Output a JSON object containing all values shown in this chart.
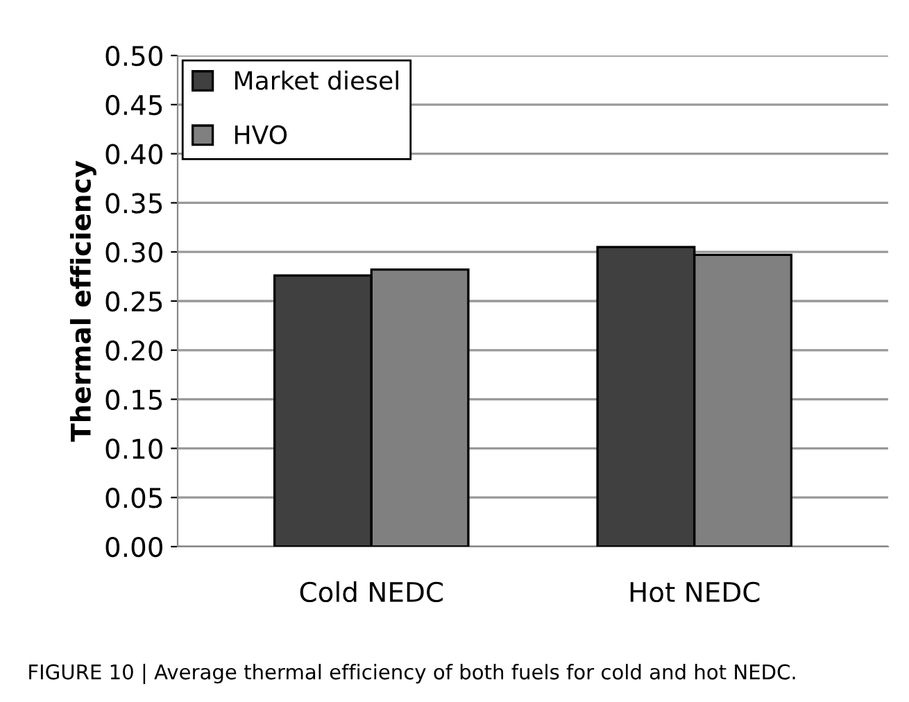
{
  "chart_data": {
    "type": "bar",
    "ylabel": "Thermal efficiency",
    "categories": [
      "Cold NEDC",
      "Hot NEDC"
    ],
    "series": [
      {
        "name": "Market diesel",
        "color": "#404040",
        "values": [
          0.276,
          0.305
        ]
      },
      {
        "name": "HVO",
        "color": "#808080",
        "values": [
          0.282,
          0.297
        ]
      }
    ],
    "ylim": [
      0,
      0.5
    ],
    "yticks": [
      {
        "value": 0,
        "label": "0.00"
      },
      {
        "value": 0.05,
        "label": "0.05"
      },
      {
        "value": 0.1,
        "label": "0.10"
      },
      {
        "value": 0.15,
        "label": "0.15"
      },
      {
        "value": 0.2,
        "label": "0.20"
      },
      {
        "value": 0.25,
        "label": "0.25"
      },
      {
        "value": 0.3,
        "label": "0.30"
      },
      {
        "value": 0.35,
        "label": "0.35"
      },
      {
        "value": 0.4,
        "label": "0.40"
      },
      {
        "value": 0.45,
        "label": "0.45"
      },
      {
        "value": 0.5,
        "label": "0.50"
      }
    ],
    "grid": "y",
    "legend": "top left",
    "annotations": [
      "FIGURE 10 | Average thermal efficiency of both fuels for cold and hot NEDC."
    ]
  }
}
